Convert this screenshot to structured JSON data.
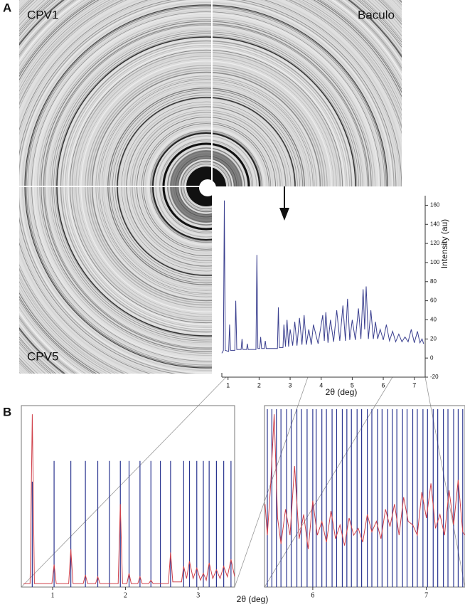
{
  "figure": {
    "panel_a": "A",
    "panel_b": "B",
    "image_labels": [
      "CPV1",
      "Baculo",
      "CPV5"
    ]
  },
  "chart_data": [
    {
      "type": "line",
      "ylabel": "Intensity (au)",
      "xlabel": "2θ (deg)",
      "color": "#3a3f8f",
      "xlim": [
        0.8,
        7.35
      ],
      "ylim": [
        -20,
        170
      ],
      "xticks": [
        1,
        2,
        3,
        4,
        5,
        6,
        7
      ],
      "yticks": [
        -20,
        0,
        20,
        40,
        60,
        80,
        100,
        120,
        140,
        160
      ],
      "x": [
        0.8,
        0.85,
        0.88,
        0.91,
        1.02,
        1.05,
        1.08,
        1.22,
        1.25,
        1.28,
        1.42,
        1.45,
        1.48,
        1.6,
        1.62,
        1.65,
        1.9,
        1.93,
        1.96,
        2.02,
        2.05,
        2.08,
        2.17,
        2.2,
        2.23,
        2.59,
        2.62,
        2.65,
        2.77,
        2.8,
        2.85,
        2.9,
        2.95,
        3.0,
        3.08,
        3.15,
        3.22,
        3.3,
        3.38,
        3.45,
        3.52,
        3.6,
        3.68,
        3.75,
        3.9,
        4.05,
        4.1,
        4.15,
        4.22,
        4.3,
        4.4,
        4.5,
        4.6,
        4.7,
        4.78,
        4.85,
        4.92,
        5.0,
        5.1,
        5.2,
        5.28,
        5.35,
        5.4,
        5.45,
        5.52,
        5.6,
        5.68,
        5.75,
        5.82,
        5.9,
        6.0,
        6.1,
        6.2,
        6.3,
        6.4,
        6.5,
        6.6,
        6.7,
        6.8,
        6.9,
        7.0,
        7.1,
        7.18,
        7.25,
        7.3
      ],
      "values": [
        5,
        8,
        165,
        8,
        7,
        35,
        8,
        8,
        60,
        9,
        9,
        20,
        9,
        9,
        15,
        9,
        9,
        108,
        10,
        10,
        22,
        10,
        10,
        18,
        10,
        10,
        53,
        11,
        11,
        35,
        12,
        40,
        12,
        30,
        13,
        38,
        13,
        42,
        14,
        45,
        14,
        30,
        14,
        35,
        15,
        45,
        18,
        48,
        16,
        40,
        17,
        50,
        18,
        55,
        18,
        62,
        19,
        40,
        19,
        52,
        20,
        72,
        30,
        75,
        20,
        50,
        20,
        38,
        20,
        30,
        19,
        35,
        18,
        28,
        17,
        25,
        17,
        22,
        17,
        30,
        16,
        28,
        16,
        20,
        15
      ]
    },
    {
      "type": "line",
      "xlabel": "2θ (deg)",
      "color": "#d0404a",
      "sticks_color": "#2a3590",
      "xlim": [
        0.57,
        3.5
      ],
      "ylim": [
        0,
        105
      ],
      "xticks": [
        1,
        2,
        3
      ],
      "x": [
        0.6,
        0.69,
        0.72,
        0.75,
        0.99,
        1.02,
        1.05,
        1.22,
        1.25,
        1.28,
        1.42,
        1.45,
        1.48,
        1.59,
        1.62,
        1.65,
        1.9,
        1.93,
        1.96,
        2.02,
        2.05,
        2.08,
        2.17,
        2.2,
        2.23,
        2.32,
        2.35,
        2.38,
        2.59,
        2.62,
        2.65,
        2.77,
        2.8,
        2.84,
        2.88,
        2.93,
        2.98,
        3.03,
        3.07,
        3.11,
        3.15,
        3.2,
        3.25,
        3.3,
        3.35,
        3.4,
        3.45,
        3.5
      ],
      "values": [
        2,
        2,
        100,
        2,
        2,
        13,
        2,
        2,
        22,
        2,
        2,
        7,
        2,
        2,
        6,
        2,
        2,
        48,
        2,
        2,
        8,
        2,
        2,
        6,
        2,
        2,
        4,
        2,
        2,
        20,
        3,
        3,
        12,
        5,
        15,
        5,
        11,
        4,
        8,
        4,
        14,
        5,
        10,
        5,
        12,
        6,
        16,
        6
      ],
      "sticks_x": [
        0.72,
        1.02,
        1.25,
        1.45,
        1.62,
        1.78,
        1.93,
        2.05,
        2.2,
        2.35,
        2.48,
        2.62,
        2.8,
        2.88,
        2.98,
        3.07,
        3.15,
        3.25,
        3.35,
        3.45
      ],
      "sticks_values": [
        61,
        73,
        73,
        73,
        73,
        73,
        73,
        73,
        73,
        73,
        73,
        73,
        73,
        73,
        73,
        73,
        73,
        73,
        73,
        73
      ]
    },
    {
      "type": "line",
      "color": "#d0404a",
      "sticks_color": "#2a3590",
      "xlim": [
        5.575,
        7.34
      ],
      "ylim": [
        0,
        105
      ],
      "xticks": [
        6,
        7
      ],
      "x": [
        5.58,
        5.6,
        5.63,
        5.66,
        5.69,
        5.72,
        5.76,
        5.8,
        5.84,
        5.88,
        5.92,
        5.96,
        6.0,
        6.04,
        6.08,
        6.12,
        6.16,
        6.2,
        6.24,
        6.28,
        6.32,
        6.36,
        6.4,
        6.44,
        6.48,
        6.52,
        6.56,
        6.6,
        6.64,
        6.68,
        6.72,
        6.76,
        6.8,
        6.84,
        6.88,
        6.92,
        6.96,
        7.0,
        7.04,
        7.08,
        7.12,
        7.16,
        7.2,
        7.24,
        7.28,
        7.32,
        7.34
      ],
      "values": [
        48,
        30,
        60,
        100,
        40,
        25,
        45,
        30,
        70,
        28,
        42,
        22,
        50,
        30,
        38,
        26,
        44,
        28,
        36,
        24,
        40,
        30,
        34,
        26,
        42,
        32,
        38,
        28,
        45,
        35,
        48,
        30,
        52,
        38,
        36,
        30,
        55,
        40,
        60,
        34,
        42,
        30,
        56,
        36,
        62,
        32,
        30
      ],
      "sticks_x": [
        5.6,
        5.64,
        5.68,
        5.72,
        5.77,
        5.81,
        5.86,
        5.9,
        5.95,
        6.0,
        6.03,
        6.08,
        6.12,
        6.17,
        6.21,
        6.26,
        6.3,
        6.34,
        6.39,
        6.43,
        6.48,
        6.52,
        6.57,
        6.61,
        6.66,
        6.7,
        6.74,
        6.79,
        6.83,
        6.88,
        6.92,
        6.97,
        7.01,
        7.06,
        7.1,
        7.15,
        7.19,
        7.24,
        7.28,
        7.32
      ],
      "sticks_values": [
        103,
        103,
        103,
        103,
        103,
        103,
        103,
        103,
        103,
        103,
        103,
        103,
        103,
        103,
        103,
        103,
        103,
        103,
        103,
        103,
        103,
        103,
        103,
        103,
        103,
        103,
        103,
        103,
        103,
        103,
        103,
        103,
        103,
        103,
        103,
        103,
        103,
        103,
        103,
        103
      ]
    }
  ]
}
